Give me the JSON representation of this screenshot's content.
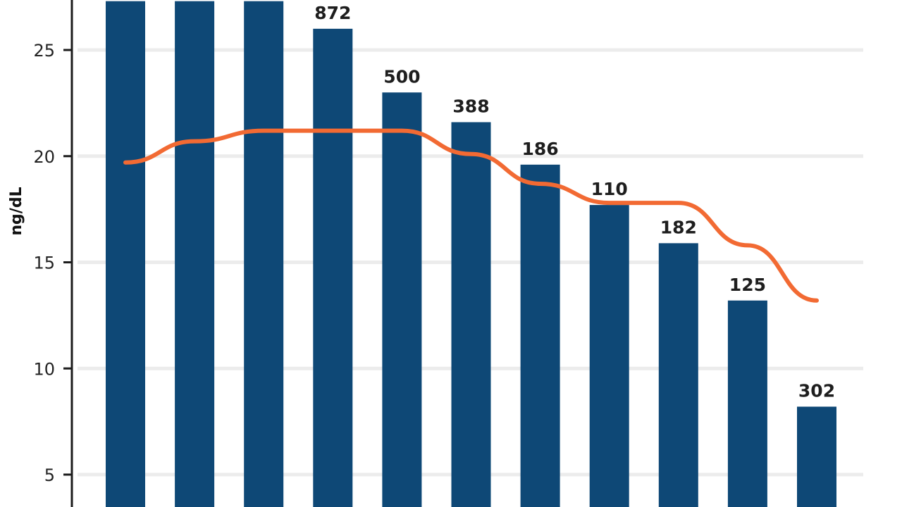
{
  "chart_data": {
    "type": "bar",
    "ylabel": "ng/dL",
    "ylim": [
      4,
      27.3
    ],
    "yticks": [
      5,
      10,
      15,
      20,
      25
    ],
    "grid": true,
    "bar_color": "#0e4876",
    "line_color": "#f26a33",
    "categories": [
      "",
      "",
      "",
      "",
      "",
      "",
      "",
      "",
      "",
      "",
      ""
    ],
    "series": [
      {
        "type": "bar",
        "values": [
          27.3,
          27.3,
          27.3,
          26.0,
          23.0,
          21.6,
          19.6,
          17.7,
          15.9,
          13.2,
          8.2
        ],
        "labels": [
          "",
          "",
          "",
          "872",
          "500",
          "388",
          "186",
          "110",
          "182",
          "125",
          "302"
        ]
      },
      {
        "type": "line",
        "values": [
          19.7,
          20.7,
          21.2,
          21.2,
          21.2,
          20.1,
          18.7,
          17.8,
          17.8,
          15.8,
          13.2
        ]
      }
    ]
  }
}
